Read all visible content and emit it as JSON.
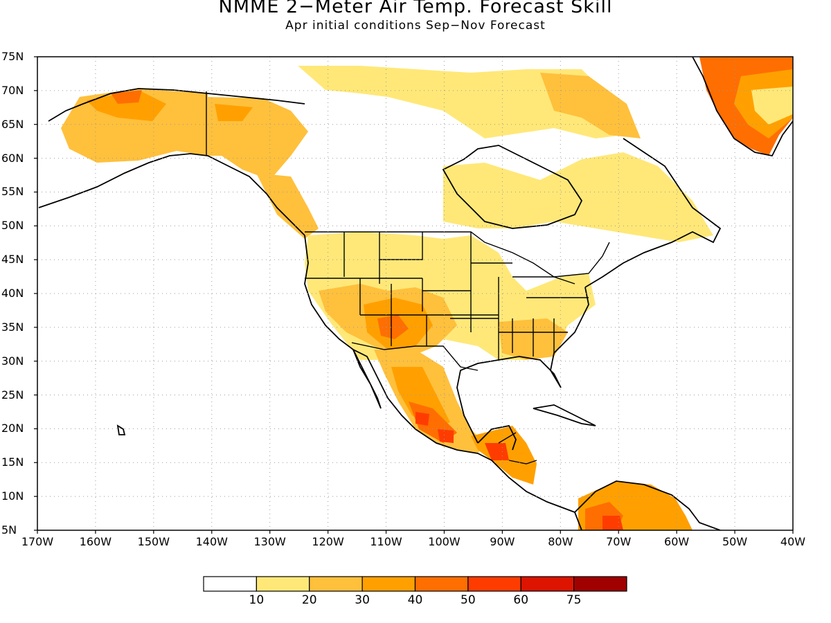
{
  "title": "NMME 2−Meter Air Temp. Forecast Skill",
  "subtitle": "Apr initial conditions  Sep−Nov Forecast",
  "latitudes": [
    "75N",
    "70N",
    "65N",
    "60N",
    "55N",
    "50N",
    "45N",
    "40N",
    "35N",
    "30N",
    "25N",
    "20N",
    "15N",
    "10N",
    "5N"
  ],
  "longitudes": [
    "170W",
    "160W",
    "150W",
    "140W",
    "130W",
    "120W",
    "110W",
    "100W",
    "90W",
    "80W",
    "70W",
    "60W",
    "50W",
    "40W"
  ],
  "colorbar": {
    "ticks": [
      "10",
      "20",
      "30",
      "40",
      "50",
      "60",
      "75"
    ],
    "colors": [
      "#ffffff",
      "#ffe878",
      "#ffc03c",
      "#ffa000",
      "#ff6e00",
      "#ff3c00",
      "#dc1400",
      "#a00000"
    ]
  },
  "chart_data": {
    "type": "heatmap",
    "title": "NMME 2−Meter Air Temp. Forecast Skill",
    "subtitle": "Apr initial conditions  Sep−Nov Forecast",
    "xlim": [
      -170,
      -40
    ],
    "ylim": [
      5,
      75
    ],
    "grid": true,
    "levels": [
      10,
      20,
      30,
      40,
      50,
      60,
      75
    ]
  }
}
